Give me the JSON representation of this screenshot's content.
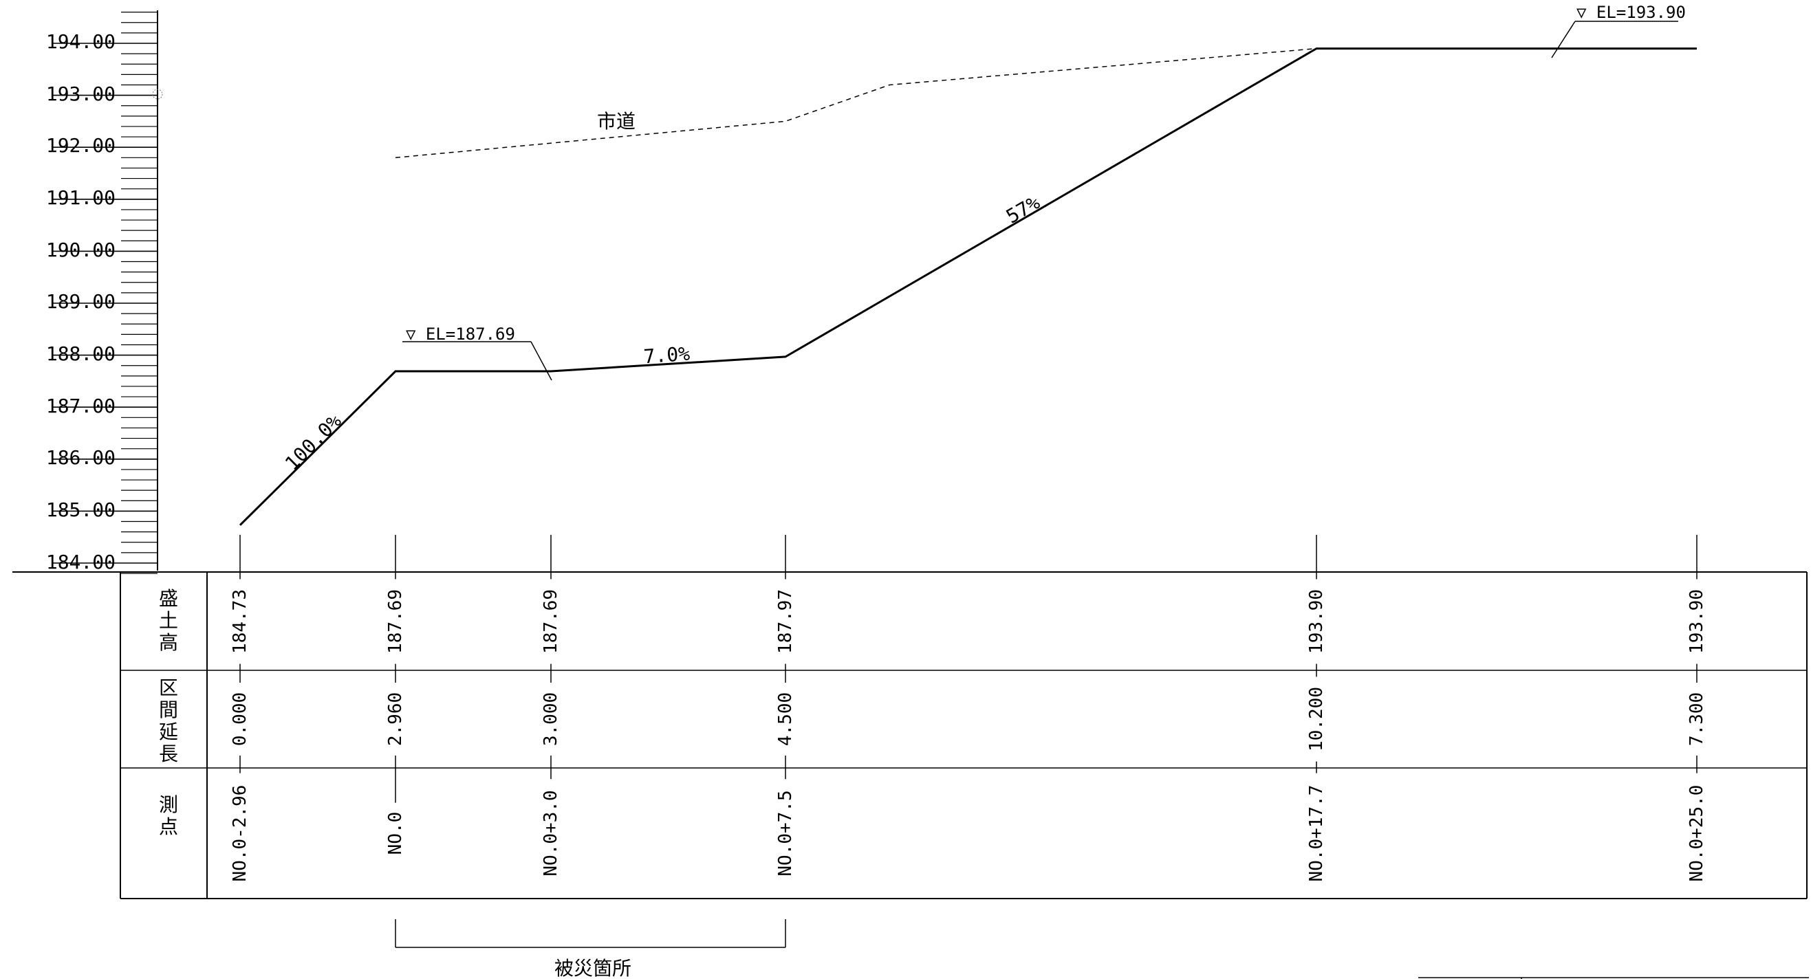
{
  "drawing": {
    "elevation_scale": {
      "labels": [
        "194.00",
        "193.00",
        "192.00",
        "191.00",
        "190.00",
        "189.00",
        "188.00",
        "187.00",
        "186.00",
        "185.00",
        "184.00"
      ],
      "values": [
        194,
        193,
        192,
        191,
        190,
        189,
        188,
        187,
        186,
        185,
        184
      ],
      "min": 183.8,
      "max": 194.6,
      "minor_step": 0.2
    },
    "road_label": "市道",
    "left_level_label": "▽ EL=187.69",
    "right_level_label": "▽ EL=193.90",
    "slope_labels": [
      "100.0%",
      "7.0%",
      "57%"
    ],
    "damage_label": "被災箇所"
  },
  "table": {
    "headers": {
      "fill_height": [
        "盛",
        "土",
        "高"
      ],
      "section_length": [
        "区",
        "間",
        "延",
        "長"
      ],
      "station": [
        "測",
        "点"
      ]
    },
    "columns": [
      {
        "fill_height": "184.73",
        "section_length": "0.000",
        "station": "NO.0-2.96"
      },
      {
        "fill_height": "187.69",
        "section_length": "2.960",
        "station": "NO.0"
      },
      {
        "fill_height": "187.69",
        "section_length": "3.000",
        "station": "NO.0+3.0"
      },
      {
        "fill_height": "187.97",
        "section_length": "4.500",
        "station": "NO.0+7.5"
      },
      {
        "fill_height": "193.90",
        "section_length": "10.200",
        "station": "NO.0+17.7"
      },
      {
        "fill_height": "193.90",
        "section_length": "7.300",
        "station": "NO.0+25.0"
      }
    ]
  },
  "chart_data": {
    "type": "line",
    "title": "",
    "xlabel": "",
    "ylabel": "",
    "x_labels": [
      "NO.0-2.96",
      "NO.0",
      "NO.0+3.0",
      "NO.0+7.5",
      "NO.0+17.7",
      "NO.0+25.0"
    ],
    "x": [
      -2.96,
      0,
      3.0,
      7.5,
      17.7,
      25.0
    ],
    "ylim": [
      184,
      194
    ],
    "series": [
      {
        "name": "",
        "style": "solid",
        "values": [
          184.73,
          187.69,
          187.69,
          187.97,
          193.9,
          193.9
        ]
      },
      {
        "name": "市道",
        "style": "dashed",
        "x": [
          0,
          7.5,
          9.5,
          17.7
        ],
        "values": [
          191.8,
          192.5,
          193.2,
          193.9
        ]
      }
    ],
    "annotations": [
      "▽ EL=187.69",
      "▽ EL=193.90",
      "100.0%",
      "7.0%",
      "57%"
    ]
  }
}
